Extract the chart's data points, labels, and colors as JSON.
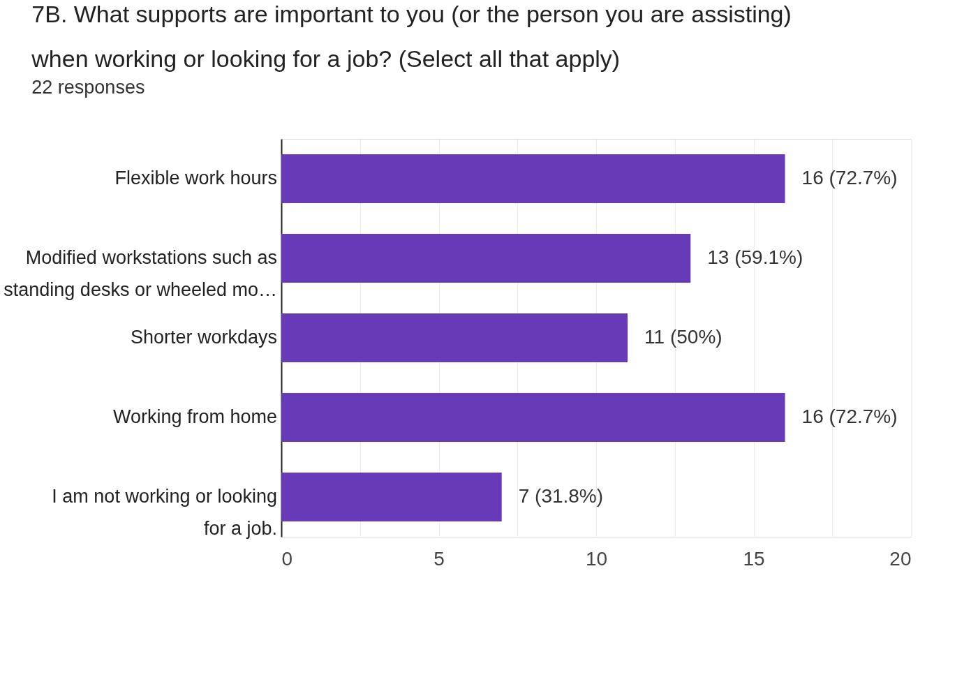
{
  "chart_data": {
    "type": "bar",
    "orientation": "horizontal",
    "title": "7B. What supports are important to you (or the person you are assisting) when working or looking for a job? (Select all that apply)",
    "subtitle": "22 responses",
    "categories": [
      "Flexible work hours",
      "Modified workstations such as standing desks or wheeled mo…",
      "Shorter workdays",
      "Working from home",
      "I am not working or looking for a job."
    ],
    "values": [
      16,
      13,
      11,
      16,
      7
    ],
    "value_labels": [
      "16 (72.7%)",
      "13 (59.1%)",
      "11 (50%)",
      "16 (72.7%)",
      "7 (31.8%)"
    ],
    "color": "#673ab7",
    "xlim": [
      0,
      20
    ],
    "xticks": [
      0,
      {
        "value": 2.5,
        "label": null
      },
      5,
      {
        "value": 7.5,
        "label": null
      },
      10,
      {
        "value": 12.5,
        "label": null
      },
      15,
      {
        "value": 17.5,
        "label": null
      },
      20
    ],
    "grid": "x"
  }
}
